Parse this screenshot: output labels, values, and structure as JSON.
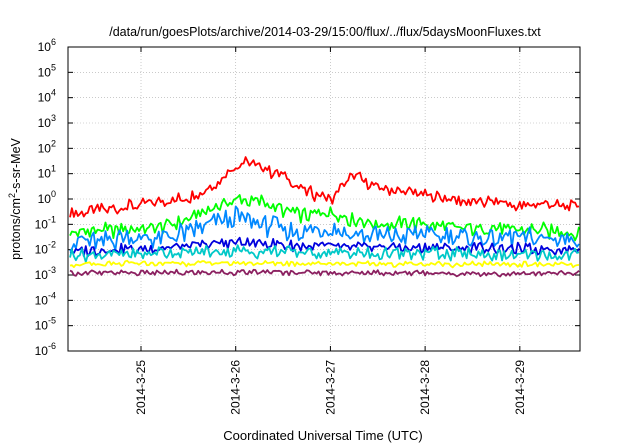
{
  "chart_data": {
    "type": "line",
    "title": "/data/run/goesPlots/archive/2014-03-29/15:00/flux/../flux/5daysMoonFluxes.txt",
    "xlabel": "Coordinated Universal Time (UTC)",
    "ylabel": "protons/cm2-s-sr-MeV",
    "ylabel_parts": {
      "pre": "protons/cm",
      "sup": "2",
      "post": "-s-sr-MeV"
    },
    "y_scale": "log",
    "ylim_exponents": [
      -6,
      6
    ],
    "y_ticks": [
      {
        "exp": -6,
        "base": "10",
        "sup": "-6"
      },
      {
        "exp": -5,
        "base": "10",
        "sup": "-5"
      },
      {
        "exp": -4,
        "base": "10",
        "sup": "-4"
      },
      {
        "exp": -3,
        "base": "10",
        "sup": "-3"
      },
      {
        "exp": -2,
        "base": "10",
        "sup": "-2"
      },
      {
        "exp": -1,
        "base": "10",
        "sup": "-1"
      },
      {
        "exp": 0,
        "base": "10",
        "sup": "0"
      },
      {
        "exp": 1,
        "base": "10",
        "sup": "1"
      },
      {
        "exp": 2,
        "base": "10",
        "sup": "2"
      },
      {
        "exp": 3,
        "base": "10",
        "sup": "3"
      },
      {
        "exp": 4,
        "base": "10",
        "sup": "4"
      },
      {
        "exp": 5,
        "base": "10",
        "sup": "5"
      },
      {
        "exp": 6,
        "base": "10",
        "sup": "6"
      }
    ],
    "x_range": [
      "2014-03-24 05:30",
      "2014-03-29 15:15"
    ],
    "x_ticks": [
      "2014-3-25",
      "2014-3-26",
      "2014-3-27",
      "2014-3-28",
      "2014-3-29"
    ],
    "grid": true,
    "series": [
      {
        "color": "#ff0000",
        "values": [
          [
            "2014-03-24 06:00",
            0.25
          ],
          [
            "2014-03-24 12:00",
            0.35
          ],
          [
            "2014-03-24 18:00",
            0.45
          ],
          [
            "2014-03-25 00:00",
            0.6
          ],
          [
            "2014-03-25 06:00",
            0.8
          ],
          [
            "2014-03-25 12:00",
            1.2
          ],
          [
            "2014-03-25 18:00",
            3
          ],
          [
            "2014-03-26 00:00",
            20
          ],
          [
            "2014-03-26 03:00",
            28
          ],
          [
            "2014-03-26 06:00",
            18
          ],
          [
            "2014-03-26 12:00",
            8
          ],
          [
            "2014-03-26 18:00",
            2
          ],
          [
            "2014-03-27 00:00",
            1
          ],
          [
            "2014-03-27 03:00",
            3
          ],
          [
            "2014-03-27 06:00",
            10
          ],
          [
            "2014-03-27 09:00",
            4
          ],
          [
            "2014-03-27 12:00",
            3
          ],
          [
            "2014-03-27 18:00",
            2
          ],
          [
            "2014-03-28 00:00",
            1.5
          ],
          [
            "2014-03-28 06:00",
            1.0
          ],
          [
            "2014-03-28 12:00",
            0.7
          ],
          [
            "2014-03-28 18:00",
            0.8
          ],
          [
            "2014-03-29 00:00",
            0.5
          ],
          [
            "2014-03-29 06:00",
            0.7
          ],
          [
            "2014-03-29 12:00",
            0.5
          ],
          [
            "2014-03-29 15:00",
            0.55
          ]
        ]
      },
      {
        "color": "#00ff00",
        "values": [
          [
            "2014-03-24 06:00",
            0.05
          ],
          [
            "2014-03-24 18:00",
            0.06
          ],
          [
            "2014-03-25 06:00",
            0.08
          ],
          [
            "2014-03-25 12:00",
            0.15
          ],
          [
            "2014-03-25 18:00",
            0.5
          ],
          [
            "2014-03-26 00:00",
            1.0
          ],
          [
            "2014-03-26 06:00",
            0.8
          ],
          [
            "2014-03-26 12:00",
            0.4
          ],
          [
            "2014-03-26 18:00",
            0.2
          ],
          [
            "2014-03-27 00:00",
            0.3
          ],
          [
            "2014-03-27 06:00",
            0.15
          ],
          [
            "2014-03-27 12:00",
            0.1
          ],
          [
            "2014-03-28 00:00",
            0.1
          ],
          [
            "2014-03-28 12:00",
            0.07
          ],
          [
            "2014-03-29 00:00",
            0.06
          ],
          [
            "2014-03-29 15:00",
            0.05
          ]
        ]
      },
      {
        "color": "#0088ff",
        "values": [
          [
            "2014-03-24 06:00",
            0.02
          ],
          [
            "2014-03-24 18:00",
            0.025
          ],
          [
            "2014-03-25 06:00",
            0.03
          ],
          [
            "2014-03-25 12:00",
            0.05
          ],
          [
            "2014-03-25 18:00",
            0.1
          ],
          [
            "2014-03-26 00:00",
            0.2
          ],
          [
            "2014-03-26 06:00",
            0.1
          ],
          [
            "2014-03-26 12:00",
            0.07
          ],
          [
            "2014-03-26 18:00",
            0.05
          ],
          [
            "2014-03-27 00:00",
            0.06
          ],
          [
            "2014-03-27 06:00",
            0.04
          ],
          [
            "2014-03-28 00:00",
            0.04
          ],
          [
            "2014-03-28 12:00",
            0.03
          ],
          [
            "2014-03-29 00:00",
            0.03
          ],
          [
            "2014-03-29 15:00",
            0.025
          ]
        ]
      },
      {
        "color": "#0000dd",
        "values": [
          [
            "2014-03-24 06:00",
            0.009
          ],
          [
            "2014-03-25 00:00",
            0.01
          ],
          [
            "2014-03-25 12:00",
            0.014
          ],
          [
            "2014-03-26 00:00",
            0.02
          ],
          [
            "2014-03-26 12:00",
            0.015
          ],
          [
            "2014-03-27 00:00",
            0.013
          ],
          [
            "2014-03-28 00:00",
            0.012
          ],
          [
            "2014-03-29 00:00",
            0.011
          ],
          [
            "2014-03-29 15:00",
            0.01
          ]
        ]
      },
      {
        "color": "#00c8c8",
        "values": [
          [
            "2014-03-24 06:00",
            0.006
          ],
          [
            "2014-03-25 00:00",
            0.007
          ],
          [
            "2014-03-26 00:00",
            0.009
          ],
          [
            "2014-03-27 00:00",
            0.007
          ],
          [
            "2014-03-28 00:00",
            0.007
          ],
          [
            "2014-03-29 00:00",
            0.006
          ],
          [
            "2014-03-29 15:00",
            0.006
          ]
        ]
      },
      {
        "color": "#ffff00",
        "values": [
          [
            "2014-03-24 06:00",
            0.0025
          ],
          [
            "2014-03-25 00:00",
            0.0028
          ],
          [
            "2014-03-26 00:00",
            0.003
          ],
          [
            "2014-03-27 00:00",
            0.0028
          ],
          [
            "2014-03-28 00:00",
            0.0027
          ],
          [
            "2014-03-29 00:00",
            0.0026
          ],
          [
            "2014-03-29 15:00",
            0.0025
          ]
        ]
      },
      {
        "color": "#8b2060",
        "values": [
          [
            "2014-03-24 06:00",
            0.0012
          ],
          [
            "2014-03-25 00:00",
            0.0012
          ],
          [
            "2014-03-26 00:00",
            0.0013
          ],
          [
            "2014-03-27 00:00",
            0.0012
          ],
          [
            "2014-03-28 00:00",
            0.0012
          ],
          [
            "2014-03-29 00:00",
            0.0011
          ],
          [
            "2014-03-29 15:00",
            0.0012
          ]
        ]
      }
    ]
  }
}
